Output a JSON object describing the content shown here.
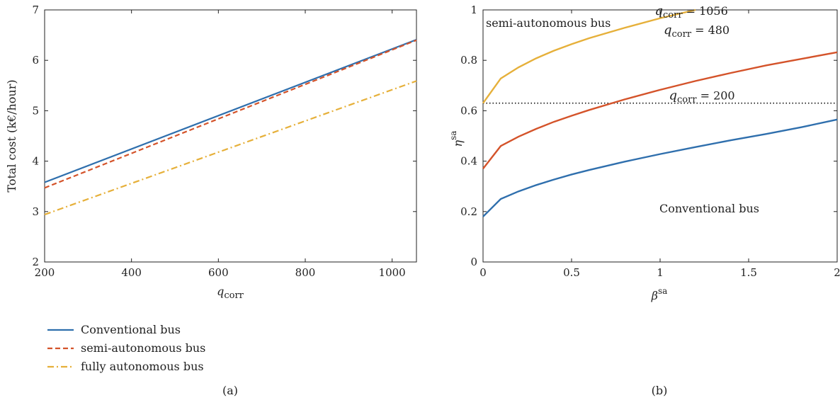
{
  "colors": {
    "blue": "#2f6fad",
    "red": "#d4532a",
    "yellow": "#e6b03a"
  },
  "chart_data": [
    {
      "type": "line",
      "panel_label": "(a)",
      "ylabel": "Total cost (k€/hour)",
      "xlabel_base": "q",
      "xlabel_sub": "corr",
      "xlim": [
        200,
        1056
      ],
      "ylim": [
        2,
        7
      ],
      "xticks": [
        200,
        400,
        600,
        800,
        1000
      ],
      "yticks": [
        2,
        3,
        4,
        5,
        6,
        7
      ],
      "legend_position": "below",
      "series": [
        {
          "name": "Conventional bus",
          "color": "#2f6fad",
          "dash": "solid",
          "x": [
            200,
            1056
          ],
          "y": [
            3.58,
            6.41
          ]
        },
        {
          "name": "semi-autonomous bus",
          "color": "#d4532a",
          "dash": "dashed",
          "x": [
            200,
            1056
          ],
          "y": [
            3.47,
            6.4
          ]
        },
        {
          "name": "fully autonomous bus",
          "color": "#e6b03a",
          "dash": "dashdot",
          "x": [
            200,
            1056
          ],
          "y": [
            2.94,
            5.59
          ]
        }
      ]
    },
    {
      "type": "line",
      "panel_label": "(b)",
      "ylabel_base": "η",
      "ylabel_sup": "sa",
      "xlabel_base": "β",
      "xlabel_sup": "sa",
      "xlim": [
        0,
        2
      ],
      "ylim": [
        0,
        1
      ],
      "xticks": [
        0,
        0.5,
        1,
        1.5,
        2
      ],
      "yticks": [
        0,
        0.2,
        0.4,
        0.6,
        0.8,
        1
      ],
      "reference_line": {
        "y": 0.63,
        "style": "dotted"
      },
      "region_labels": [
        "semi-autonomous bus",
        "Conventional bus"
      ],
      "series": [
        {
          "label_base": "q",
          "label_sub": "corr",
          "label_value": "= 200",
          "color": "#2f6fad",
          "x": [
            0,
            0.1,
            0.2,
            0.3,
            0.4,
            0.5,
            0.6,
            0.8,
            1.0,
            1.2,
            1.4,
            1.6,
            1.8,
            2.0
          ],
          "y": [
            0.18,
            0.25,
            0.28,
            0.305,
            0.327,
            0.347,
            0.365,
            0.398,
            0.428,
            0.456,
            0.483,
            0.508,
            0.535,
            0.565
          ]
        },
        {
          "label_base": "q",
          "label_sub": "corr",
          "label_value": "= 480",
          "color": "#d4532a",
          "x": [
            0,
            0.1,
            0.2,
            0.3,
            0.4,
            0.5,
            0.6,
            0.8,
            1.0,
            1.2,
            1.4,
            1.6,
            1.8,
            2.0
          ],
          "y": [
            0.37,
            0.46,
            0.497,
            0.528,
            0.556,
            0.58,
            0.603,
            0.645,
            0.683,
            0.718,
            0.75,
            0.78,
            0.806,
            0.832
          ]
        },
        {
          "label_base": "q",
          "label_sub": "corr",
          "label_value": "= 1056",
          "color": "#e6b03a",
          "x": [
            0,
            0.1,
            0.2,
            0.3,
            0.4,
            0.5,
            0.6,
            0.8,
            1.0,
            1.2
          ],
          "y": [
            0.63,
            0.728,
            0.772,
            0.808,
            0.838,
            0.864,
            0.888,
            0.929,
            0.967,
            1.0
          ]
        }
      ]
    }
  ]
}
